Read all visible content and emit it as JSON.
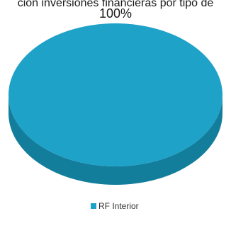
{
  "chart_data": {
    "type": "pie",
    "title": "ción inversiones financieras por tipo de",
    "categories": [
      "RF Interior"
    ],
    "values": [
      100
    ],
    "data_labels": [
      "100%"
    ],
    "series": [
      {
        "name": "RF Interior",
        "values": [
          100
        ],
        "color": "#1ea2c8"
      }
    ],
    "style": "3d",
    "legend": "bottom"
  },
  "colors": {
    "slice_top": "#1ea2c8",
    "slice_side": "#137d9c"
  }
}
